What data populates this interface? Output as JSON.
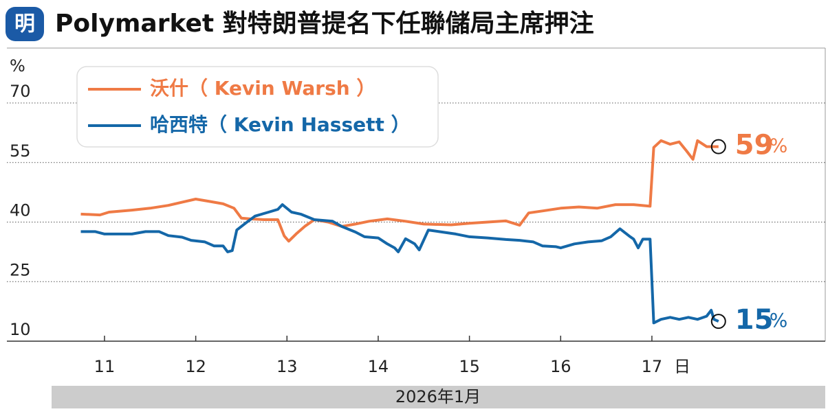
{
  "logo": "明",
  "chart_data": {
    "type": "line",
    "title": "Polymarket 對特朗普提名下任聯儲局主席押注",
    "unit": "%",
    "x_unit": "日",
    "xlabel": "2026年1月",
    "xlim": [
      9.93,
      18.9
    ],
    "xticks": [
      11,
      12,
      13,
      14,
      15,
      16,
      17
    ],
    "ylim": [
      10,
      70
    ],
    "yticks": [
      10,
      25,
      40,
      55,
      70
    ],
    "grid": true,
    "legend": "upper-left",
    "series": [
      {
        "name": "沃什（ Kevin Warsh ）",
        "color": "#ef7a45",
        "end_value": 59,
        "x": [
          10.74,
          10.95,
          11.05,
          11.3,
          11.5,
          11.7,
          11.85,
          12.0,
          12.15,
          12.3,
          12.42,
          12.5,
          12.6,
          12.75,
          12.9,
          12.97,
          13.02,
          13.1,
          13.2,
          13.3,
          13.45,
          13.6,
          13.75,
          13.9,
          14.1,
          14.3,
          14.5,
          14.8,
          15.0,
          15.2,
          15.4,
          15.55,
          15.65,
          15.8,
          16.0,
          16.2,
          16.4,
          16.6,
          16.8,
          16.98,
          17.02,
          17.1,
          17.2,
          17.3,
          17.38,
          17.45,
          17.5,
          17.6,
          17.73
        ],
        "values": [
          42,
          41.8,
          42.5,
          43,
          43.5,
          44.2,
          45,
          45.8,
          45.2,
          44.6,
          43.5,
          41,
          40.8,
          40.6,
          40.6,
          36.5,
          35.2,
          37,
          39,
          40.6,
          40,
          38.9,
          39.5,
          40.2,
          40.8,
          40.2,
          39.5,
          39.3,
          39.7,
          40,
          40.3,
          39.2,
          42.3,
          42.8,
          43.5,
          43.8,
          43.5,
          44.4,
          44.4,
          44,
          58.8,
          60.5,
          59.6,
          60.2,
          57.9,
          55.8,
          60.5,
          59,
          59
        ]
      },
      {
        "name": "哈西特（ Kevin Hassett ）",
        "color": "#1467a8",
        "end_value": 15,
        "x": [
          10.74,
          10.9,
          11.0,
          11.3,
          11.45,
          11.6,
          11.7,
          11.85,
          11.95,
          12.1,
          12.2,
          12.3,
          12.35,
          12.4,
          12.45,
          12.55,
          12.65,
          12.8,
          12.9,
          12.95,
          13.05,
          13.15,
          13.3,
          13.5,
          13.6,
          13.75,
          13.85,
          14.0,
          14.1,
          14.18,
          14.22,
          14.3,
          14.4,
          14.45,
          14.55,
          14.7,
          14.85,
          15.0,
          15.2,
          15.4,
          15.55,
          15.7,
          15.8,
          15.95,
          16.0,
          16.15,
          16.3,
          16.45,
          16.55,
          16.65,
          16.75,
          16.8,
          16.85,
          16.9,
          16.98,
          17.02,
          17.1,
          17.2,
          17.3,
          17.4,
          17.5,
          17.6,
          17.65,
          17.68,
          17.73
        ],
        "values": [
          37.6,
          37.6,
          37,
          37,
          37.6,
          37.6,
          36.6,
          36.2,
          35.4,
          35,
          34,
          34,
          32.5,
          32.8,
          38,
          39.8,
          41.5,
          42.5,
          43.2,
          44.4,
          42.5,
          42,
          40.6,
          40.2,
          38.9,
          37.5,
          36.3,
          36,
          34.5,
          33.5,
          32.5,
          35.8,
          34.5,
          33,
          38,
          37.5,
          37,
          36.3,
          36,
          35.6,
          35.4,
          35,
          34,
          33.8,
          33.5,
          34.5,
          35,
          35.3,
          36.3,
          38.3,
          36.5,
          35.7,
          33.5,
          35.7,
          35.7,
          14.6,
          15.5,
          16,
          15.5,
          16,
          15.5,
          16.3,
          17.8,
          15.5,
          15
        ]
      }
    ]
  }
}
